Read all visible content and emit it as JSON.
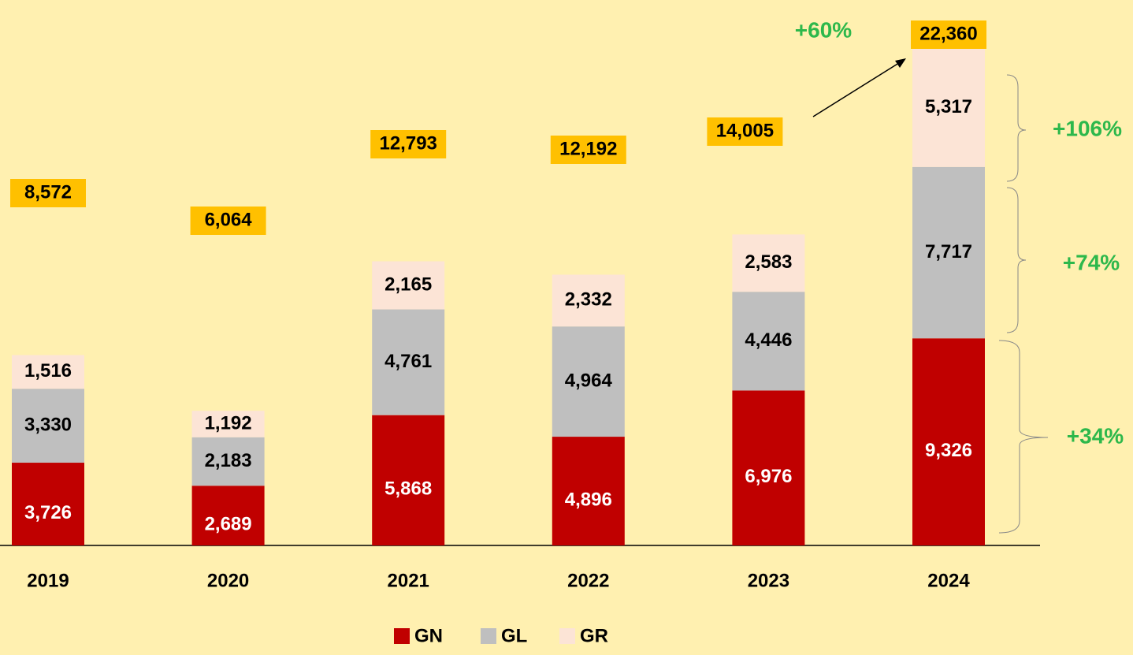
{
  "chart_data": {
    "type": "stacked_bar",
    "categories": [
      "2019",
      "2020",
      "2021",
      "2022",
      "2023",
      "2024"
    ],
    "series": [
      {
        "name": "GN",
        "color": "#c00000",
        "values": [
          3726,
          2689,
          5868,
          4896,
          6976,
          9326
        ]
      },
      {
        "name": "GL",
        "color": "#bfbfbf",
        "values": [
          3330,
          2183,
          4761,
          4964,
          4446,
          7717
        ]
      },
      {
        "name": "GR",
        "color": "#fce4d6",
        "values": [
          1516,
          1192,
          2165,
          2332,
          2583,
          5317
        ]
      }
    ],
    "totals": {
      "values": [
        8572,
        6064,
        12793,
        12192,
        14005,
        22360
      ],
      "value_labels": [
        "8,572",
        "6,064",
        "12,793",
        "12,192",
        "14,005",
        "22,360"
      ],
      "color": "#ffc000"
    },
    "value_labels": [
      [
        "3,726",
        "2,689",
        "5,868",
        "4,896",
        "6,976",
        "9,326"
      ],
      [
        "3,330",
        "2,183",
        "4,761",
        "4,964",
        "4,446",
        "7,717"
      ],
      [
        "1,516",
        "1,192",
        "2,165",
        "2,332",
        "2,583",
        "5,317"
      ]
    ],
    "annotations": [
      "+60%",
      "+106%",
      "+74%",
      "+34%"
    ],
    "annotation_color": "#2db84b"
  }
}
